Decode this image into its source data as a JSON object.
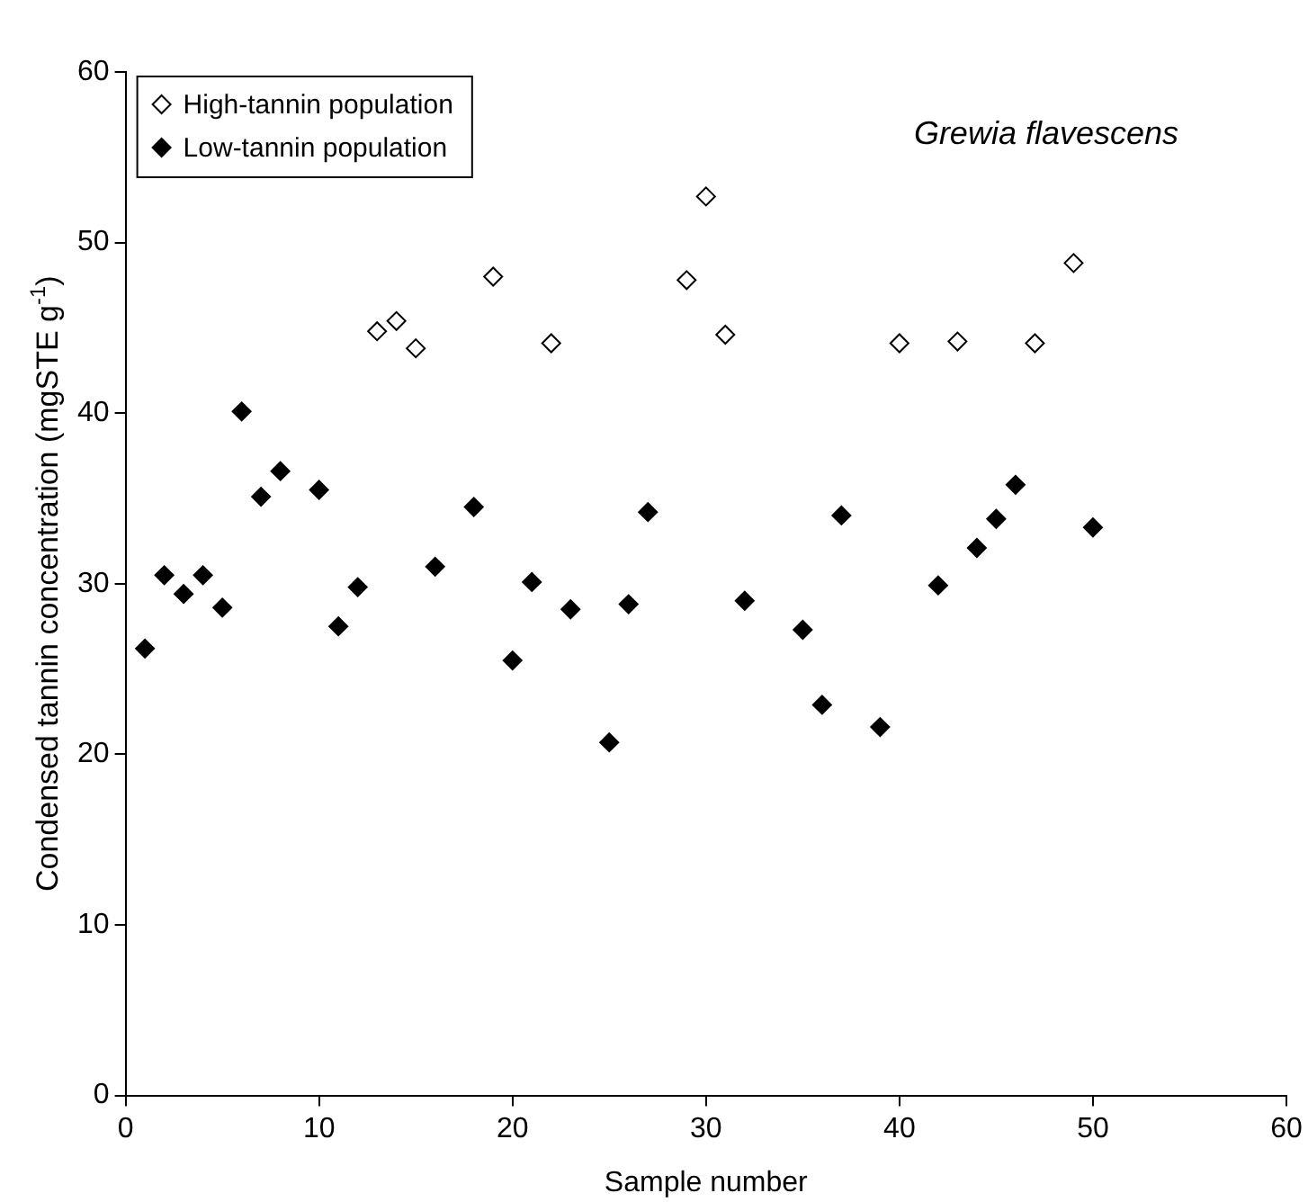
{
  "chart_data": {
    "type": "scatter",
    "xlabel": "Sample number",
    "ylabel": "Condensed tannin concentration (mgSTE g$^{-1}$)",
    "annotations": [
      "Grewia flavescens"
    ],
    "xlim": [
      0,
      60
    ],
    "xticks": [
      0,
      10,
      20,
      30,
      40,
      50,
      60
    ],
    "ylim": [
      0,
      60
    ],
    "yticks": [
      0,
      10,
      20,
      30,
      40,
      50,
      60
    ],
    "grid": false,
    "legend": "top left",
    "marker": "diamond",
    "series": [
      {
        "name": "High-tannin population",
        "color": "#ffffff",
        "x": [
          13,
          14,
          15,
          19,
          22,
          29,
          30,
          31,
          40,
          43,
          47,
          49
        ],
        "values": [
          44.8,
          45.4,
          43.8,
          48,
          44.1,
          47.8,
          52.7,
          44.6,
          44.1,
          44.2,
          44.1,
          48.8
        ]
      },
      {
        "name": "Low-tannin population",
        "color": "#000000",
        "x": [
          1,
          2,
          3,
          4,
          5,
          6,
          7,
          8,
          10,
          11,
          12,
          16,
          18,
          20,
          21,
          23,
          25,
          26,
          27,
          32,
          35,
          36,
          37,
          39,
          42,
          44,
          45,
          46,
          50
        ],
        "values": [
          26.2,
          30.5,
          29.4,
          30.5,
          28.6,
          40.1,
          35.1,
          36.6,
          35.5,
          27.5,
          29.8,
          31,
          34.5,
          25.5,
          30.1,
          28.5,
          20.7,
          28.8,
          34.2,
          29,
          27.3,
          22.9,
          34,
          21.6,
          29.9,
          32.1,
          33.8,
          35.8,
          33.3
        ]
      }
    ]
  }
}
